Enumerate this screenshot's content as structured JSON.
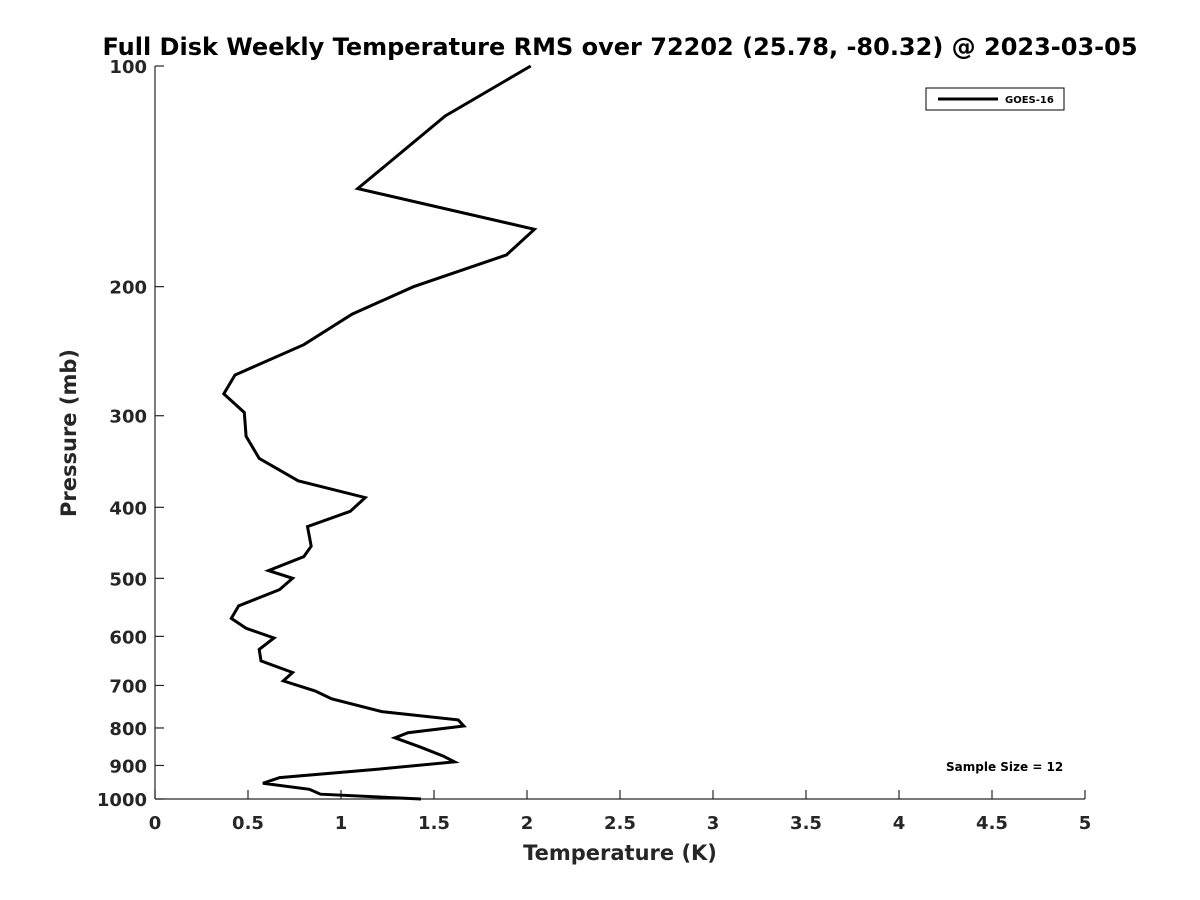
{
  "chart_data": {
    "type": "line",
    "title": "Full Disk Weekly Temperature RMS over 72202 (25.78, -80.32) @ 2023-03-05",
    "xlabel": "Temperature (K)",
    "ylabel": "Pressure (mb)",
    "xlim": [
      0,
      5
    ],
    "ylim": [
      100,
      1000
    ],
    "yscale": "log",
    "yaxis_reversed": true,
    "grid": false,
    "legend_position": "top-right",
    "xticks": [
      0,
      0.5,
      1,
      1.5,
      2,
      2.5,
      3,
      3.5,
      4,
      4.5,
      5
    ],
    "xtick_labels": [
      "0",
      "0.5",
      "1",
      "1.5",
      "2",
      "2.5",
      "3",
      "3.5",
      "4",
      "4.5",
      "5"
    ],
    "yticks": [
      100,
      200,
      300,
      400,
      500,
      600,
      700,
      800,
      900,
      1000
    ],
    "ytick_labels": [
      "100",
      "200",
      "300",
      "400",
      "500",
      "600",
      "700",
      "800",
      "900",
      "1000"
    ],
    "series": [
      {
        "name": "GOES-16",
        "color": "#000000",
        "points": [
          [
            2.02,
            100
          ],
          [
            1.56,
            117
          ],
          [
            1.09,
            147
          ],
          [
            2.04,
            167
          ],
          [
            1.89,
            181
          ],
          [
            1.39,
            200
          ],
          [
            1.06,
            218
          ],
          [
            0.8,
            240
          ],
          [
            0.43,
            264
          ],
          [
            0.37,
            280
          ],
          [
            0.48,
            297
          ],
          [
            0.49,
            320
          ],
          [
            0.56,
            343
          ],
          [
            0.77,
            368
          ],
          [
            1.13,
            388
          ],
          [
            1.05,
            405
          ],
          [
            0.82,
            425
          ],
          [
            0.84,
            452
          ],
          [
            0.8,
            467
          ],
          [
            0.61,
            488
          ],
          [
            0.74,
            500
          ],
          [
            0.67,
            518
          ],
          [
            0.45,
            545
          ],
          [
            0.41,
            567
          ],
          [
            0.49,
            585
          ],
          [
            0.64,
            603
          ],
          [
            0.56,
            625
          ],
          [
            0.57,
            648
          ],
          [
            0.74,
            672
          ],
          [
            0.69,
            690
          ],
          [
            0.86,
            712
          ],
          [
            0.95,
            730
          ],
          [
            1.22,
            760
          ],
          [
            1.63,
            780
          ],
          [
            1.66,
            795
          ],
          [
            1.36,
            812
          ],
          [
            1.29,
            825
          ],
          [
            1.43,
            850
          ],
          [
            1.55,
            874
          ],
          [
            1.61,
            890
          ],
          [
            1.21,
            910
          ],
          [
            0.67,
            935
          ],
          [
            0.58,
            952
          ],
          [
            0.83,
            970
          ],
          [
            0.89,
            985
          ],
          [
            1.43,
            1000
          ]
        ]
      }
    ],
    "annotations": [
      "Sample Size = 12"
    ]
  }
}
